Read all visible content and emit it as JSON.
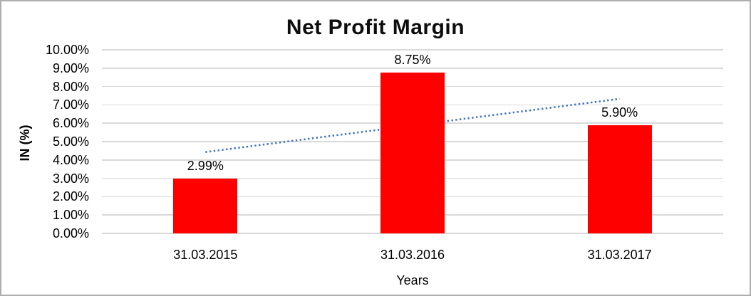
{
  "chart_data": {
    "type": "bar",
    "title": "Net Profit Margin",
    "categories": [
      "31.03.2015",
      "31.03.2016",
      "31.03.2017"
    ],
    "values": [
      2.99,
      8.75,
      5.9
    ],
    "data_labels": [
      "2.99%",
      "8.75%",
      "5.90%"
    ],
    "xlabel": "Years",
    "ylabel": "IN (%)",
    "ylim": [
      0,
      10
    ],
    "ytick_step": 1,
    "ytick_labels": [
      "0.00%",
      "1.00%",
      "2.00%",
      "3.00%",
      "4.00%",
      "5.00%",
      "6.00%",
      "7.00%",
      "8.00%",
      "9.00%",
      "10.00%"
    ],
    "grid": true,
    "legend": "none",
    "colors": {
      "bar": "#ff0000",
      "trendline": "#4472c4",
      "gridline": "#d9d9d9",
      "text": "#000000",
      "title": "#0d0d0d",
      "frame_border": "#aeaeae",
      "background": "#ffffff"
    },
    "trendline": {
      "type": "linear",
      "style": "dotted",
      "fitted_values": [
        4.43,
        5.88,
        7.33
      ],
      "drawn_behind_bars": true
    }
  }
}
